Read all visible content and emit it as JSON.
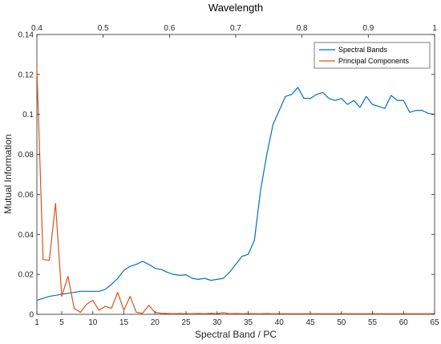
{
  "chart_data": {
    "type": "line",
    "xlabel": "Spectral Band / PC",
    "ylabel": "Mutual Information",
    "top_axis_title": "Wavelength",
    "xlim": [
      1,
      65
    ],
    "ylim": [
      0,
      0.14
    ],
    "x_ticks": [
      1,
      5,
      10,
      15,
      20,
      25,
      30,
      35,
      40,
      45,
      50,
      55,
      60,
      65
    ],
    "y_ticks": [
      0,
      0.02,
      0.04,
      0.06,
      0.08,
      0.1,
      0.12,
      0.14
    ],
    "y_tick_labels": [
      "0",
      "0.02",
      "0.04",
      "0.06",
      "0.08",
      "0.1",
      "0.12",
      "0.14"
    ],
    "top_axis": {
      "range": [
        0.4,
        1
      ],
      "ticks": [
        0.4,
        0.5,
        0.6,
        0.7,
        0.8,
        0.9,
        1
      ],
      "tick_labels": [
        "0.4",
        "0.5",
        "0.6",
        "0.7",
        "0.8",
        "0.9",
        "1"
      ]
    },
    "legend_position": "top-right",
    "grid": false,
    "series": [
      {
        "name": "Spectral Bands",
        "color": "#0072BD",
        "x": [
          1,
          2,
          3,
          4,
          5,
          6,
          7,
          8,
          9,
          10,
          11,
          12,
          13,
          14,
          15,
          16,
          17,
          18,
          19,
          20,
          21,
          22,
          23,
          24,
          25,
          26,
          27,
          28,
          29,
          30,
          31,
          32,
          33,
          34,
          35,
          36,
          37,
          38,
          39,
          40,
          41,
          42,
          43,
          44,
          45,
          46,
          47,
          48,
          49,
          50,
          51,
          52,
          53,
          54,
          55,
          56,
          57,
          58,
          59,
          60,
          61,
          62,
          63,
          64,
          65
        ],
        "y": [
          0.007,
          0.008,
          0.009,
          0.0095,
          0.01,
          0.0105,
          0.011,
          0.0115,
          0.0115,
          0.0115,
          0.0115,
          0.0125,
          0.015,
          0.018,
          0.022,
          0.024,
          0.025,
          0.0265,
          0.025,
          0.023,
          0.0225,
          0.021,
          0.02,
          0.0195,
          0.0198,
          0.018,
          0.0175,
          0.018,
          0.017,
          0.0175,
          0.018,
          0.021,
          0.025,
          0.029,
          0.03,
          0.037,
          0.062,
          0.08,
          0.095,
          0.102,
          0.109,
          0.11,
          0.1135,
          0.108,
          0.108,
          0.11,
          0.111,
          0.108,
          0.107,
          0.108,
          0.105,
          0.107,
          0.1035,
          0.109,
          0.105,
          0.104,
          0.103,
          0.1095,
          0.107,
          0.107,
          0.101,
          0.102,
          0.102,
          0.1005,
          0.1
        ]
      },
      {
        "name": "Principal Components",
        "color": "#D95319",
        "x": [
          1,
          2,
          3,
          4,
          5,
          6,
          7,
          8,
          9,
          10,
          11,
          12,
          13,
          14,
          15,
          16,
          17,
          18,
          19,
          20,
          21,
          22,
          23,
          24,
          25,
          26,
          27,
          28,
          29,
          30,
          31,
          32,
          33,
          34,
          35,
          36,
          37,
          38,
          39,
          40,
          41,
          42,
          43,
          44,
          45,
          46,
          47,
          48,
          49,
          50,
          51,
          52,
          53,
          54,
          55,
          56,
          57,
          58,
          59,
          60,
          61,
          62,
          63,
          64,
          65
        ],
        "y": [
          0.123,
          0.0275,
          0.027,
          0.0555,
          0.009,
          0.019,
          0.003,
          0.001,
          0.005,
          0.007,
          0.002,
          0.004,
          0.003,
          0.011,
          0.002,
          0.009,
          0.001,
          0.0005,
          0.0045,
          0.001,
          0.0005,
          0.0004,
          0.0003,
          0.0004,
          0.0003,
          0.0003,
          0.0004,
          0.0003,
          0.0005,
          0.0003,
          0.0008,
          0.0003,
          0.0004,
          0.0003,
          0.0004,
          0.0003,
          0.0003,
          0.0004,
          0.0003,
          0.0003,
          0.0003,
          0.0003,
          0.0003,
          0.0003,
          0.0003,
          0.0003,
          0.0003,
          0.0003,
          0.0003,
          0.0003,
          0.0003,
          0.0003,
          0.0003,
          0.0003,
          0.0003,
          0.0003,
          0.0003,
          0.0003,
          0.0003,
          0.0003,
          0.0003,
          0.0003,
          0.0003,
          0.0003,
          0.0003
        ]
      }
    ]
  }
}
